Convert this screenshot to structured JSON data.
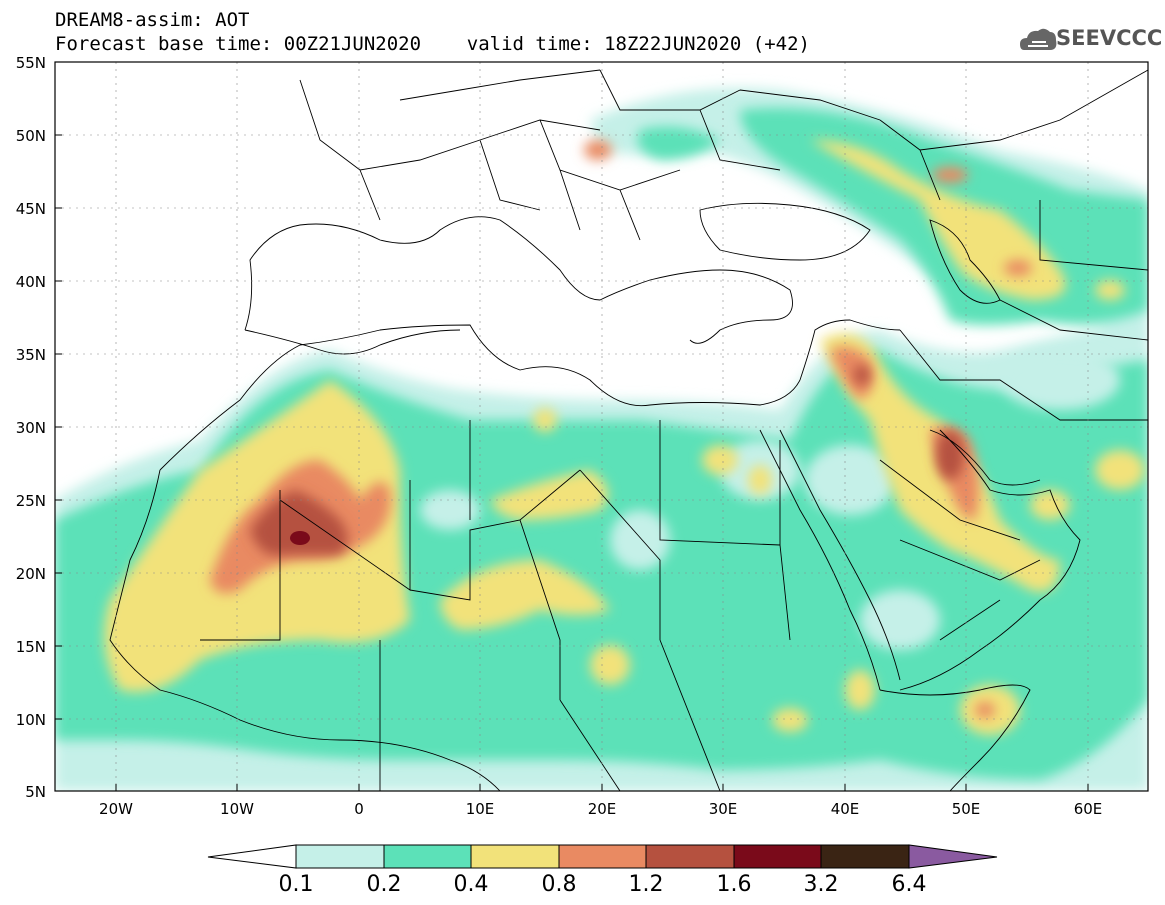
{
  "header": {
    "line1": "DREAM8-assim: AOT",
    "line2": "Forecast base time: 00Z21JUN2020    valid time: 18Z22JUN2020 (+42)"
  },
  "logo": {
    "text": "SEEVCCC",
    "icon": "cloud-icon"
  },
  "map": {
    "lat_labels": [
      "55N",
      "50N",
      "45N",
      "40N",
      "35N",
      "30N",
      "25N",
      "20N",
      "15N",
      "10N",
      "5N"
    ],
    "lon_labels": [
      "20W",
      "10W",
      "0",
      "10E",
      "20E",
      "30E",
      "40E",
      "50E",
      "60E"
    ],
    "lon_range": [
      -25,
      65
    ],
    "lat_range": [
      5,
      55
    ]
  },
  "colorbar": {
    "levels": [
      "0.1",
      "0.2",
      "0.4",
      "0.8",
      "1.2",
      "1.6",
      "3.2",
      "6.4"
    ],
    "colors": [
      "#c5f0e8",
      "#5ce1b8",
      "#f2e27a",
      "#e98a62",
      "#b5513f",
      "#7a0a1a",
      "#3a2414",
      "#8a5aa0"
    ]
  },
  "colors": {
    "c01": "#c5f0e8",
    "c02": "#5ce1b8",
    "c04": "#f2e27a",
    "c08": "#e98a62",
    "c12": "#b5513f",
    "c16": "#7a0a1a"
  }
}
